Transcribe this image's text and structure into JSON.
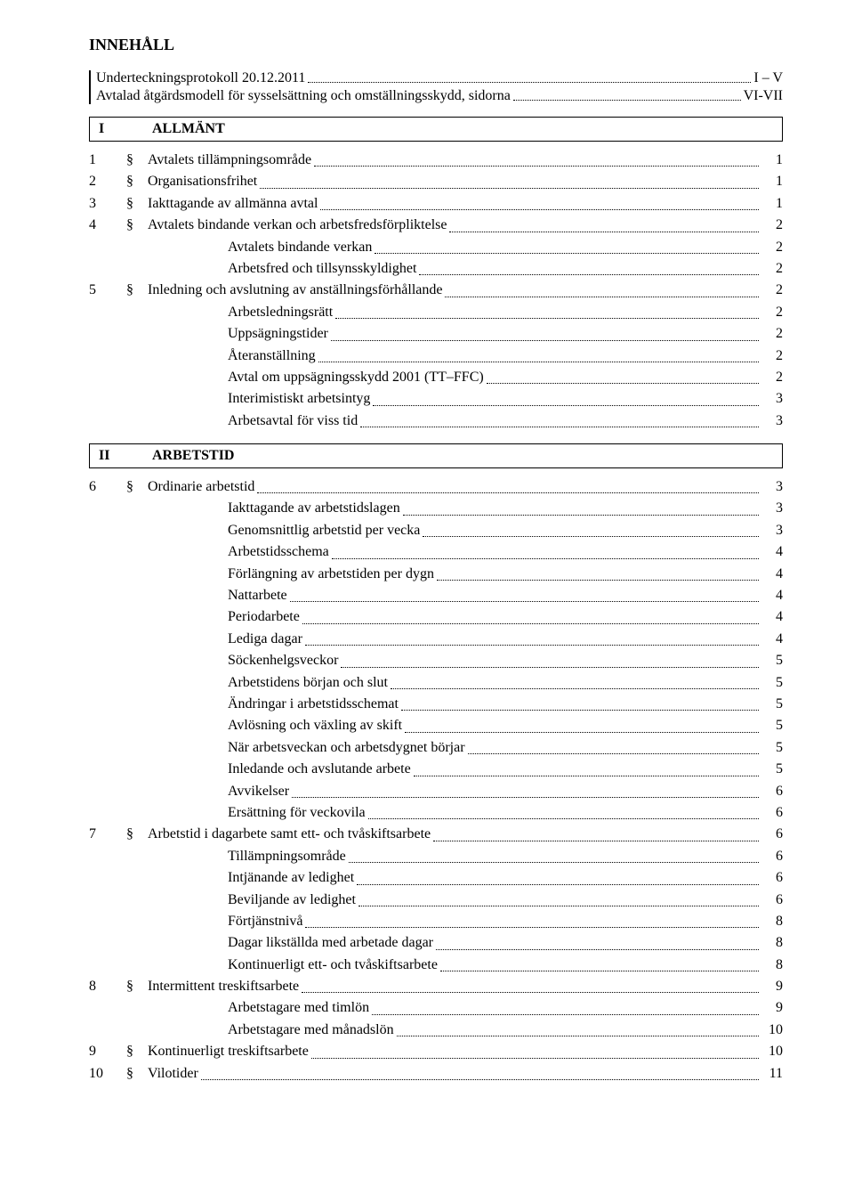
{
  "title": "INNEHÅLL",
  "intro": [
    {
      "label": "Underteckningsprotokoll 20.12.2011",
      "page": "I – V"
    },
    {
      "label": "Avtalad åtgärdsmodell för sysselsättning och omställningsskydd, sidorna",
      "page": "VI-VII"
    }
  ],
  "sections": [
    {
      "num": "I",
      "title": "ALLMÄNT",
      "entries": [
        {
          "n": "1",
          "s": "§",
          "t": "Avtalets tillämpningsområde",
          "p": "1",
          "lvl": 1
        },
        {
          "n": "2",
          "s": "§",
          "t": "Organisationsfrihet",
          "p": "1",
          "lvl": 1
        },
        {
          "n": "3",
          "s": "§",
          "t": "Iakttagande av allmänna avtal",
          "p": "1",
          "lvl": 1
        },
        {
          "n": "4",
          "s": "§",
          "t": "Avtalets bindande verkan och arbetsfredsförpliktelse",
          "p": "2",
          "lvl": 1
        },
        {
          "n": "",
          "s": "",
          "t": "Avtalets bindande verkan",
          "p": "2",
          "lvl": 2
        },
        {
          "n": "",
          "s": "",
          "t": "Arbetsfred och tillsynsskyldighet",
          "p": "2",
          "lvl": 2
        },
        {
          "n": "5",
          "s": "§",
          "t": "Inledning och avslutning av anställningsförhållande",
          "p": "2",
          "lvl": 1
        },
        {
          "n": "",
          "s": "",
          "t": "Arbetsledningsrätt",
          "p": "2",
          "lvl": 2
        },
        {
          "n": "",
          "s": "",
          "t": "Uppsägningstider",
          "p": "2",
          "lvl": 2
        },
        {
          "n": "",
          "s": "",
          "t": "Återanställning",
          "p": "2",
          "lvl": 2
        },
        {
          "n": "",
          "s": "",
          "t": "Avtal om uppsägningsskydd 2001 (TT–FFC)",
          "p": "2",
          "lvl": 2
        },
        {
          "n": "",
          "s": "",
          "t": "Interimistiskt arbetsintyg",
          "p": "3",
          "lvl": 2
        },
        {
          "n": "",
          "s": "",
          "t": "Arbetsavtal för viss tid",
          "p": "3",
          "lvl": 2
        }
      ]
    },
    {
      "num": "II",
      "title": "ARBETSTID",
      "entries": [
        {
          "n": "6",
          "s": "§",
          "t": "Ordinarie arbetstid",
          "p": "3",
          "lvl": 1
        },
        {
          "n": "",
          "s": "",
          "t": "Iakttagande av arbetstidslagen",
          "p": "3",
          "lvl": 2
        },
        {
          "n": "",
          "s": "",
          "t": "Genomsnittlig arbetstid per vecka",
          "p": "3",
          "lvl": 2
        },
        {
          "n": "",
          "s": "",
          "t": "Arbetstidsschema",
          "p": "4",
          "lvl": 2
        },
        {
          "n": "",
          "s": "",
          "t": "Förlängning av arbetstiden per dygn",
          "p": "4",
          "lvl": 2
        },
        {
          "n": "",
          "s": "",
          "t": "Nattarbete",
          "p": "4",
          "lvl": 2
        },
        {
          "n": "",
          "s": "",
          "t": "Periodarbete",
          "p": "4",
          "lvl": 2
        },
        {
          "n": "",
          "s": "",
          "t": "Lediga dagar",
          "p": "4",
          "lvl": 2
        },
        {
          "n": "",
          "s": "",
          "t": "Söckenhelgsveckor",
          "p": "5",
          "lvl": 2
        },
        {
          "n": "",
          "s": "",
          "t": "Arbetstidens början och slut",
          "p": "5",
          "lvl": 2
        },
        {
          "n": "",
          "s": "",
          "t": "Ändringar i arbetstidsschemat",
          "p": "5",
          "lvl": 2
        },
        {
          "n": "",
          "s": "",
          "t": "Avlösning och växling av skift",
          "p": "5",
          "lvl": 2
        },
        {
          "n": "",
          "s": "",
          "t": "När arbetsveckan och arbetsdygnet börjar",
          "p": "5",
          "lvl": 2
        },
        {
          "n": "",
          "s": "",
          "t": "Inledande och avslutande arbete",
          "p": "5",
          "lvl": 2
        },
        {
          "n": "",
          "s": "",
          "t": "Avvikelser",
          "p": "6",
          "lvl": 2
        },
        {
          "n": "",
          "s": "",
          "t": "Ersättning för veckovila",
          "p": "6",
          "lvl": 2
        },
        {
          "n": "7",
          "s": "§",
          "t": "Arbetstid i dagarbete samt ett- och tvåskiftsarbete",
          "p": "6",
          "lvl": 1
        },
        {
          "n": "",
          "s": "",
          "t": "Tillämpningsområde",
          "p": "6",
          "lvl": 2
        },
        {
          "n": "",
          "s": "",
          "t": "Intjänande av ledighet",
          "p": "6",
          "lvl": 2
        },
        {
          "n": "",
          "s": "",
          "t": "Beviljande av ledighet",
          "p": "6",
          "lvl": 2
        },
        {
          "n": "",
          "s": "",
          "t": "Förtjänstnivå",
          "p": "8",
          "lvl": 2
        },
        {
          "n": "",
          "s": "",
          "t": "Dagar likställda med arbetade dagar",
          "p": "8",
          "lvl": 2
        },
        {
          "n": "",
          "s": "",
          "t": "Kontinuerligt ett- och tvåskiftsarbete",
          "p": "8",
          "lvl": 2
        },
        {
          "n": "8",
          "s": "§",
          "t": "Intermittent treskiftsarbete",
          "p": "9",
          "lvl": 1
        },
        {
          "n": "",
          "s": "",
          "t": "Arbetstagare med timlön",
          "p": "9",
          "lvl": 2
        },
        {
          "n": "",
          "s": "",
          "t": "Arbetstagare med månadslön",
          "p": "10",
          "lvl": 2
        },
        {
          "n": "9",
          "s": "§",
          "t": "Kontinuerligt treskiftsarbete",
          "p": "10",
          "lvl": 1
        },
        {
          "n": "10",
          "s": "§",
          "t": "Vilotider",
          "p": "11",
          "lvl": 1
        }
      ]
    }
  ]
}
